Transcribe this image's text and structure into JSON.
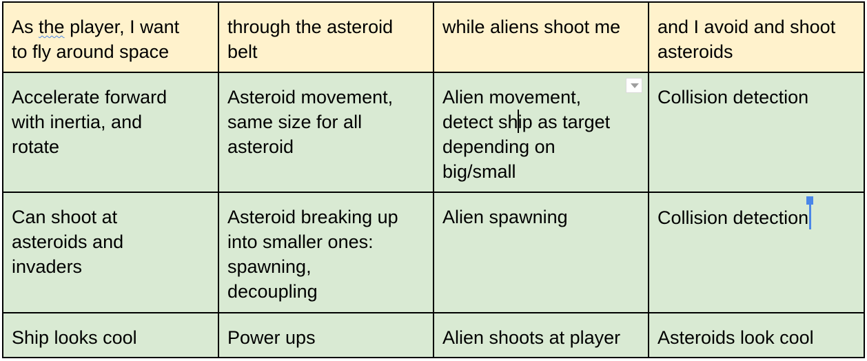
{
  "table": {
    "header": [
      {
        "pre": "As ",
        "spell": "the",
        "post": " player, I want\nto fly around space"
      },
      {
        "text": "through the asteroid\nbelt"
      },
      {
        "text": "while aliens shoot me"
      },
      {
        "text": "and I avoid and shoot\nasteroids"
      }
    ],
    "rows": [
      [
        {
          "text": "Accelerate forward\nwith inertia, and\nrotate"
        },
        {
          "text": "Asteroid movement,\nsame size for all\nasteroid"
        },
        {
          "pre": "Alien movement,\ndetect sh",
          "post": "ip as target\ndepending on\nbig/small"
        },
        {
          "text": "Collision detection"
        }
      ],
      [
        {
          "text": "Can shoot at\nasteroids and\ninvaders"
        },
        {
          "text": "Asteroid breaking up\ninto smaller ones:\nspawning,\ndecoupling"
        },
        {
          "text": "Alien spawning"
        },
        {
          "text": "Collision detection"
        }
      ],
      [
        {
          "text": "Ship looks cool"
        },
        {
          "text": "Power ups"
        },
        {
          "text": "Alien shoots at player"
        },
        {
          "text": "Asteroids look cool"
        }
      ]
    ]
  },
  "colors": {
    "header_bg": "#fff2cc",
    "body_bg": "#d9ead3",
    "border": "#000000",
    "cursor": "#4a86e8"
  },
  "icons": {
    "comment_dropdown": "chevron-down-icon"
  }
}
